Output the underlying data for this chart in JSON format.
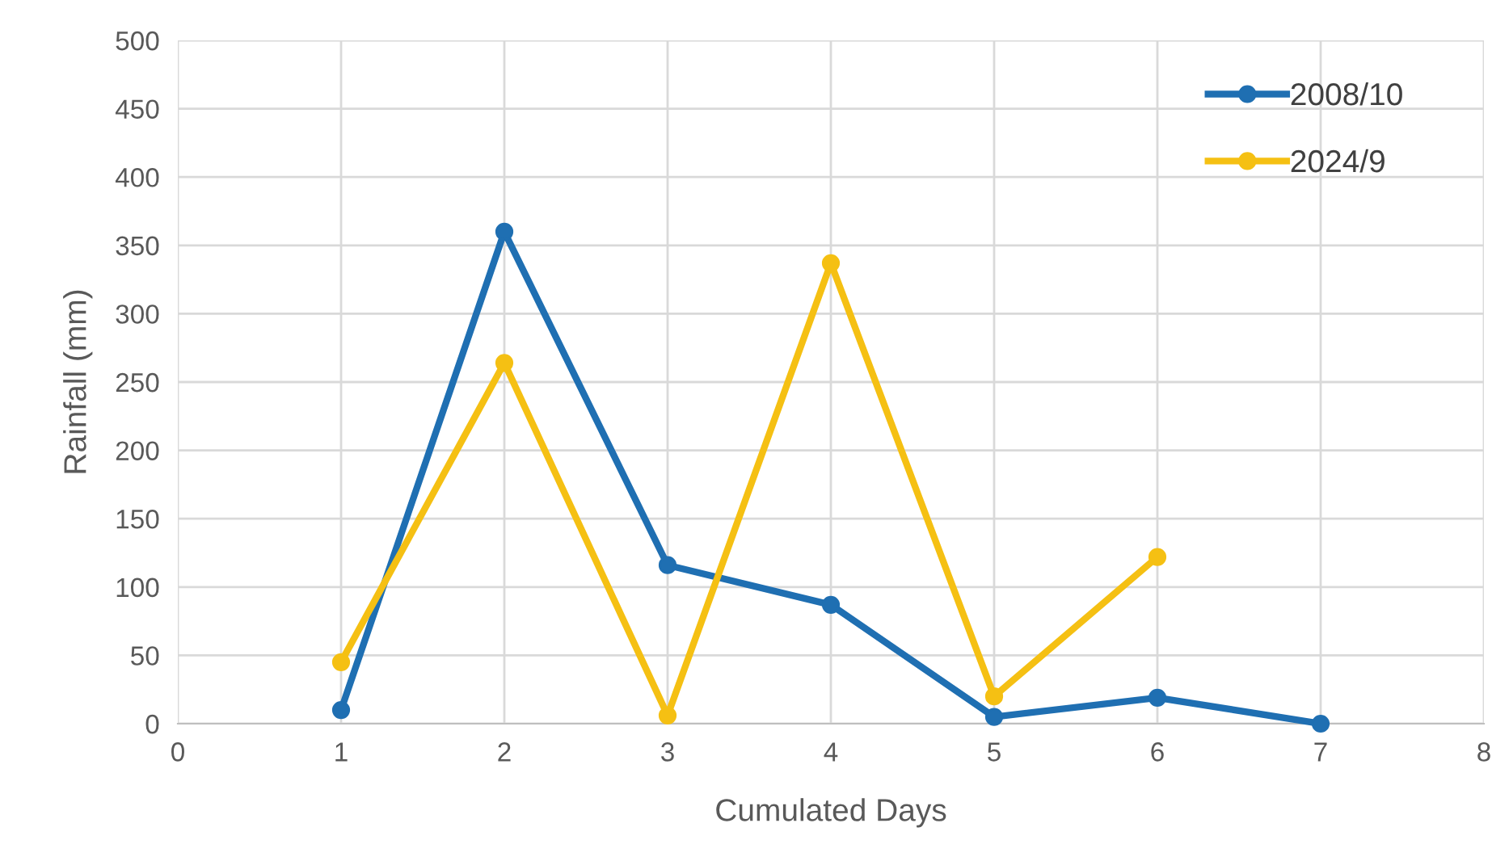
{
  "chart_data": {
    "type": "line",
    "xlabel": "Cumulated Days",
    "ylabel": "Rainfall (mm)",
    "xlim": [
      0,
      8
    ],
    "xticks": [
      0,
      1,
      2,
      3,
      4,
      5,
      6,
      7,
      8
    ],
    "ylim": [
      0,
      500
    ],
    "yticks": [
      0,
      50,
      100,
      150,
      200,
      250,
      300,
      350,
      400,
      450,
      500
    ],
    "grid": true,
    "legend": "top right",
    "marker": "circle",
    "line_style": "solid",
    "series": [
      {
        "name": "2008/10",
        "color": "#1f6fb2",
        "x": [
          1,
          2,
          3,
          4,
          5,
          6,
          7
        ],
        "values": [
          10,
          360,
          116,
          87,
          5,
          19,
          0
        ]
      },
      {
        "name": "2024/9",
        "color": "#f5c013",
        "x": [
          1,
          2,
          3,
          4,
          5,
          6
        ],
        "values": [
          45,
          264,
          6,
          337,
          20,
          122
        ]
      }
    ]
  }
}
